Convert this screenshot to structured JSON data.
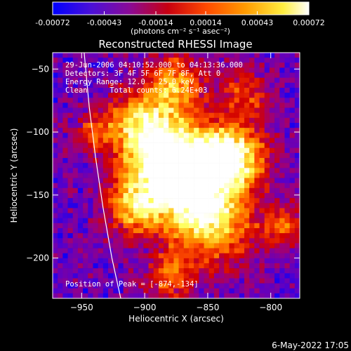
{
  "colorbar": {
    "tick_labels": [
      "-0.00072",
      "-0.00043",
      "-0.00014",
      "0.00014",
      "0.00043",
      "0.00072"
    ],
    "tick_values": [
      -0.00072,
      -0.00043,
      -0.00014,
      0.00014,
      0.00043,
      0.00072
    ],
    "range": [
      -0.00072,
      0.00072
    ],
    "units_label": "(photons cm⁻² s⁻¹ asec⁻²)",
    "colormap": [
      "#0000ff",
      "#5a00c8",
      "#9a0080",
      "#d20000",
      "#ff5000",
      "#ffa000",
      "#ffff60",
      "#ffffff"
    ]
  },
  "chart_data": {
    "type": "heatmap",
    "title": "Reconstructed RHESSI Image",
    "xlabel": "Heliocentric X (arcsec)",
    "ylabel": "Heliocentric Y (arcsec)",
    "xlim": [
      -973,
      -777
    ],
    "ylim": [
      -232,
      -37
    ],
    "xticks": [
      -950,
      -900,
      -850,
      -800
    ],
    "xtick_labels": [
      "-950",
      "-900",
      "-850",
      "-800"
    ],
    "yticks": [
      -50,
      -100,
      -150,
      -200
    ],
    "ytick_labels": [
      "-50",
      "-100",
      "-150",
      "-200"
    ],
    "grid": false,
    "peak": [
      -874,
      -134
    ],
    "limb_curve": [
      [
        -948,
        -37
      ],
      [
        -944,
        -80
      ],
      [
        -939,
        -120
      ],
      [
        -933,
        -160
      ],
      [
        -926,
        -200
      ],
      [
        -919,
        -232
      ]
    ],
    "annotations": {
      "time": "29-Jun-2006 04:10:52.000 to 04:13:36.000",
      "detectors": "Detectors: 3F 4F 5F 6F 7F 8F, Att 0",
      "energy": "Energy Range: 12.0 - 25.0 keV",
      "clean": "Clean     Total counts: 6.24E+03",
      "peak_label": "Position of Peak = [-874,-134]"
    }
  },
  "footer": {
    "date": "6-May-2022 17:05"
  }
}
